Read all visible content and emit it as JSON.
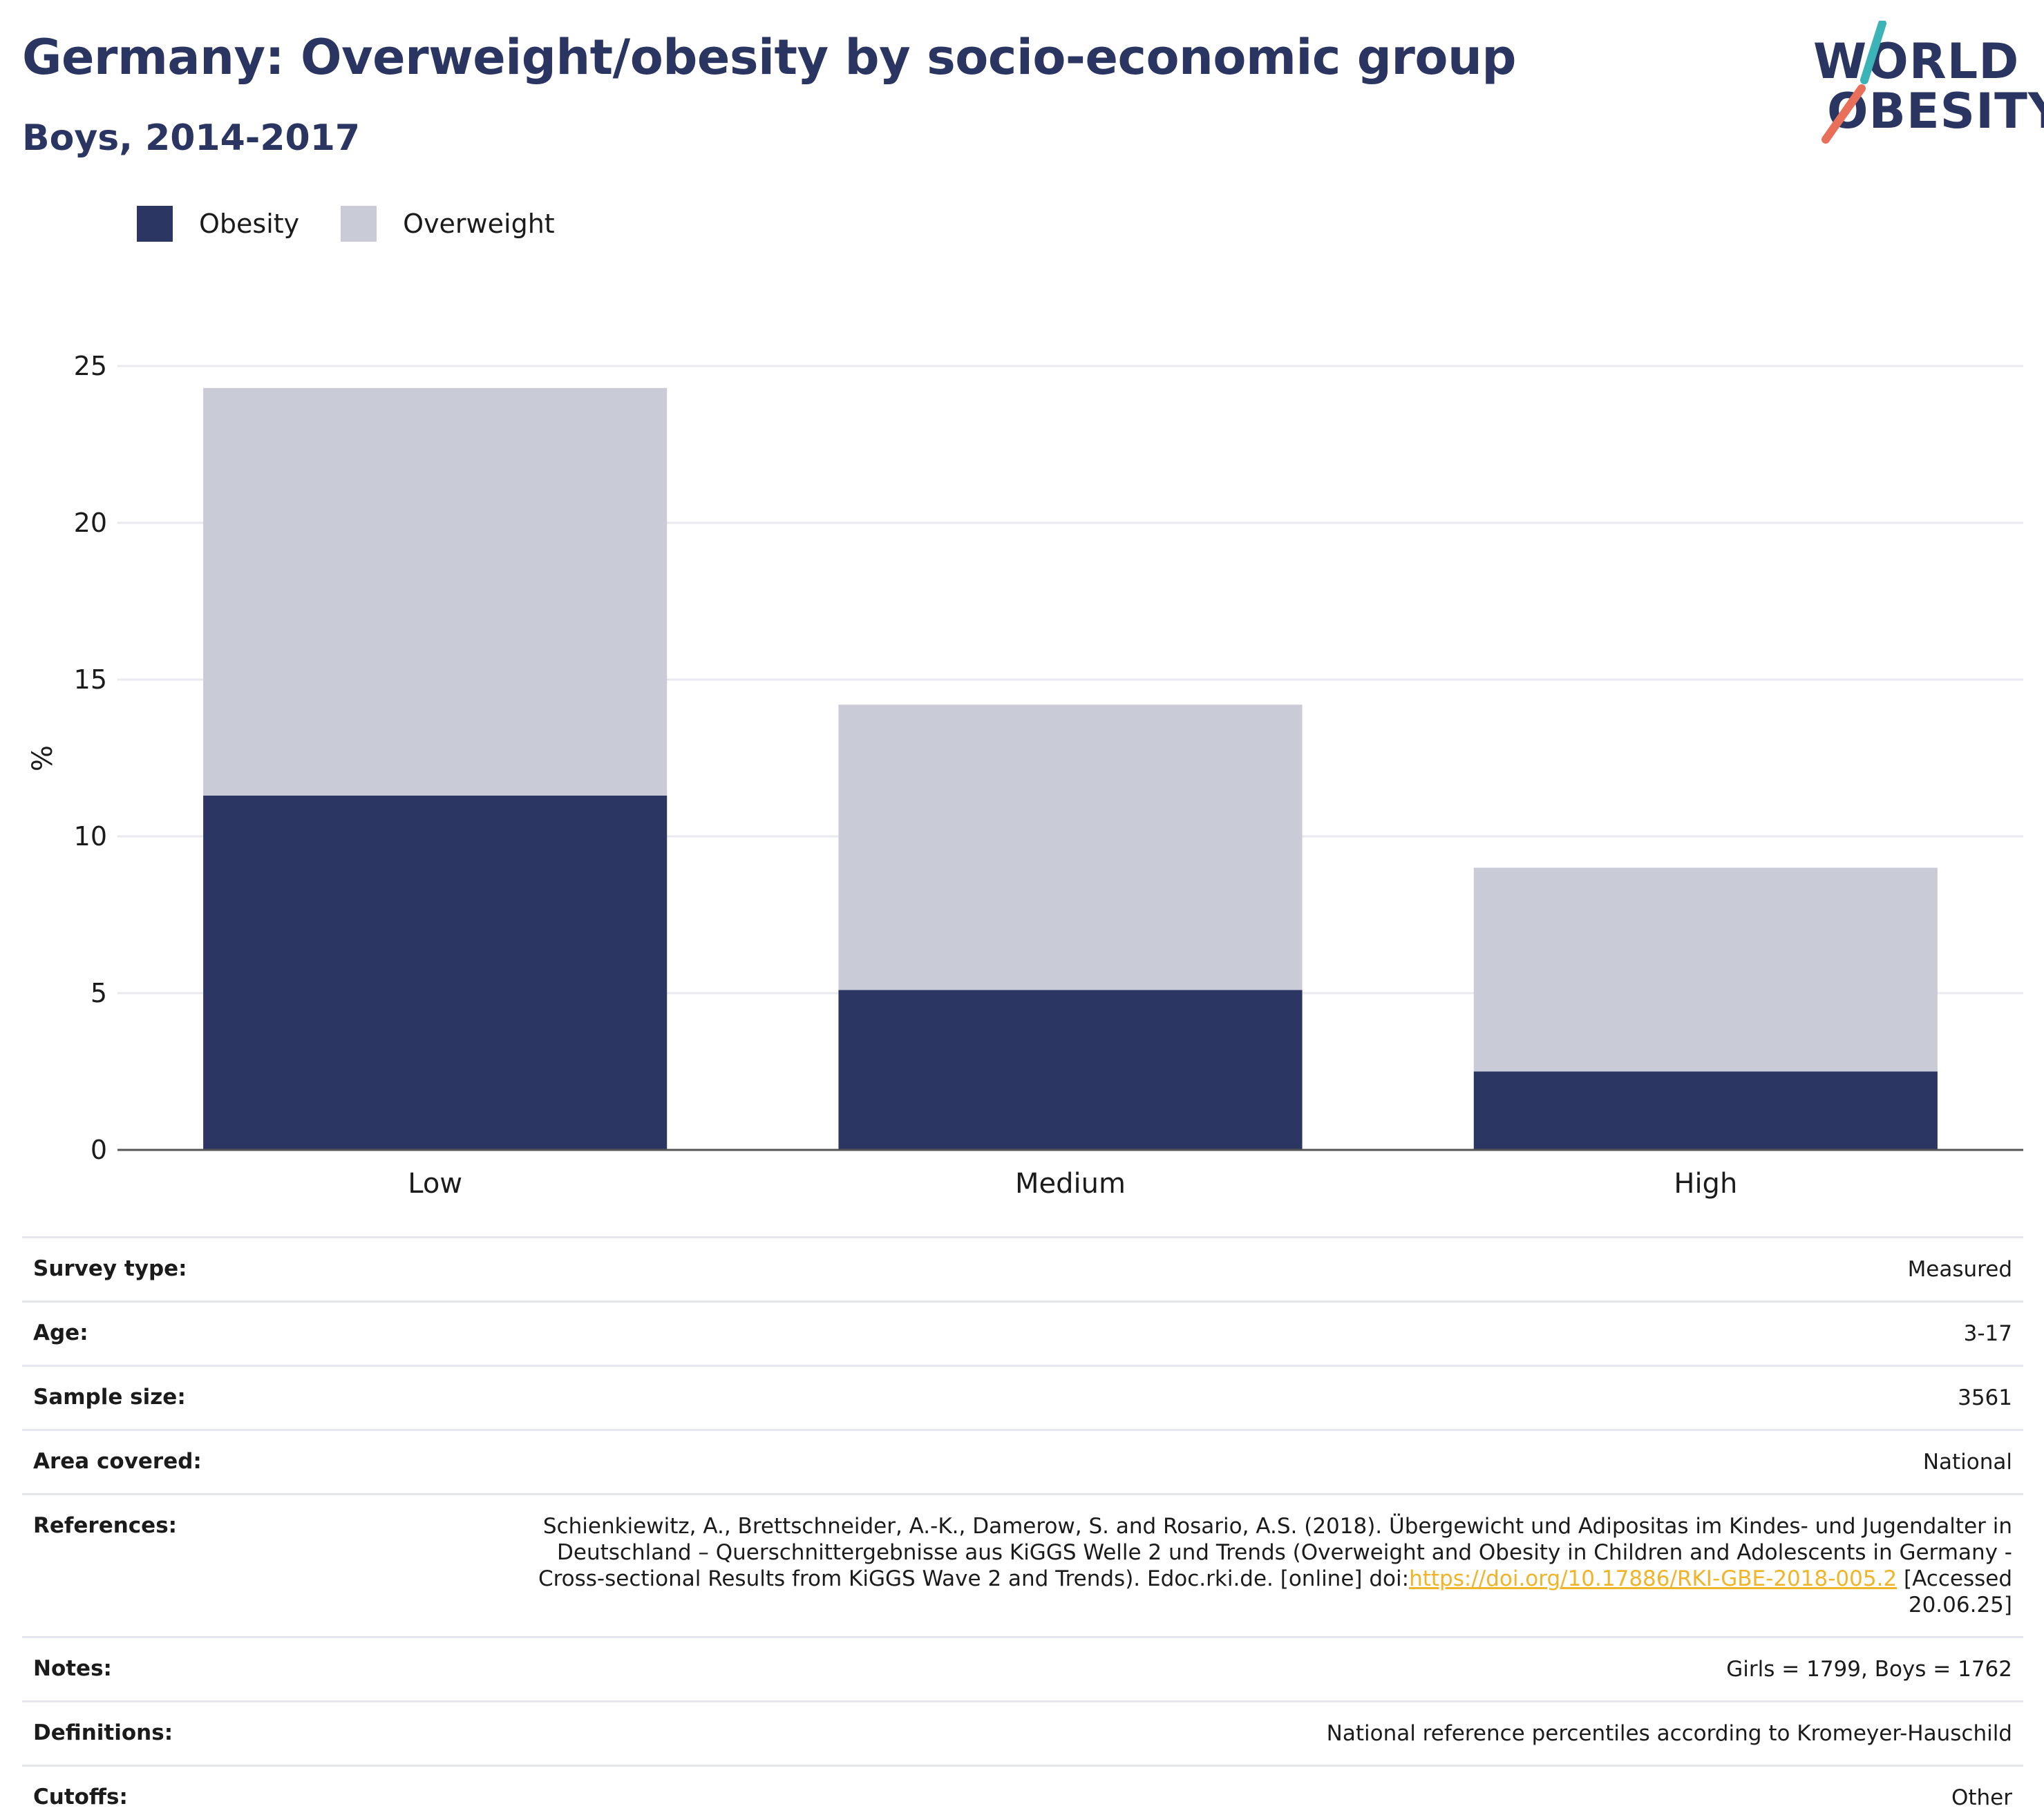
{
  "header": {
    "title": "Germany: Overweight/obesity by socio-economic group",
    "subtitle": "Boys, 2014-2017"
  },
  "logo": {
    "line1": "WORLD",
    "line2": "OBESITY",
    "colors": {
      "text": "#2b3562",
      "slash_top": "#3bb3b7",
      "slash_bottom": "#e8705a"
    }
  },
  "colors": {
    "obesity": "#2b3762",
    "overweight": "#c9cbd7",
    "grid": "#e9eaef",
    "axis": "#555555"
  },
  "chart_data": {
    "type": "bar",
    "stacked": true,
    "categories": [
      "Low",
      "Medium",
      "High"
    ],
    "series": [
      {
        "name": "Obesity",
        "values": [
          11.3,
          5.1,
          2.5
        ]
      },
      {
        "name": "Overweight",
        "values": [
          13.0,
          9.1,
          6.5
        ]
      }
    ],
    "title": "Germany: Overweight/obesity by socio-economic group",
    "subtitle": "Boys, 2014-2017",
    "xlabel": "",
    "ylabel": "%",
    "ylim": [
      0,
      25
    ],
    "yticks": [
      "0",
      "5",
      "10",
      "15",
      "20",
      "25"
    ],
    "grid": true,
    "legend": "top-left"
  },
  "meta": {
    "rows": [
      {
        "key": "Survey type:",
        "value": "Measured"
      },
      {
        "key": "Age:",
        "value": "3-17"
      },
      {
        "key": "Sample size:",
        "value": "3561"
      },
      {
        "key": "Area covered:",
        "value": "National"
      },
      {
        "key": "References:",
        "value": "Schienkiewitz, A., Brettschneider, A.-K., Damerow, S. and Rosario, A.S. (2018). Übergewicht und Adipositas im Kindes- und Jugendalter in Deutschland – Querschnittergebnisse aus KiGGS Welle 2 und Trends (Overweight and Obesity in Children and Adolescents in Germany - Cross-sectional Results from KiGGS Wave 2 and Trends). Edoc.rki.de. [online] doi:",
        "link": "https://doi.org/10.17886/RKI-GBE-2018-005.2",
        "after": " [Accessed 20.06.25]"
      },
      {
        "key": "Notes:",
        "value": "Girls = 1799, Boys = 1762"
      },
      {
        "key": "Definitions:",
        "value": "National reference percentiles according to Kromeyer-Hauschild"
      },
      {
        "key": "Cutoffs:",
        "value": "Other"
      }
    ]
  }
}
